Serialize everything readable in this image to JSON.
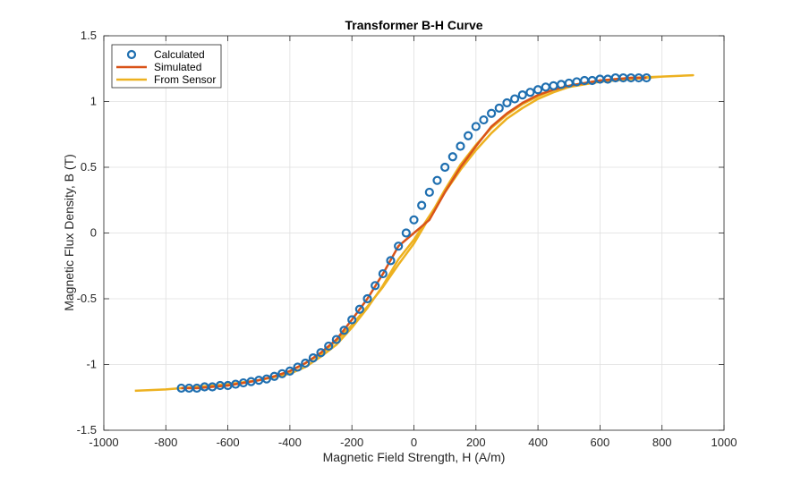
{
  "chart_data": {
    "type": "line",
    "title": "Transformer B-H Curve",
    "xlabel": "Magnetic Field Strength, H (A/m)",
    "ylabel": "Magnetic Flux Density, B (T)",
    "xlim": [
      -1000,
      1000
    ],
    "ylim": [
      -1.5,
      1.5
    ],
    "xticks": [
      -1000,
      -800,
      -600,
      -400,
      -200,
      0,
      200,
      400,
      600,
      800,
      1000
    ],
    "yticks": [
      -1.5,
      -1,
      -0.5,
      0,
      0.5,
      1,
      1.5
    ],
    "xtick_labels": [
      "-1000",
      "-800",
      "-600",
      "-400",
      "-200",
      "0",
      "200",
      "400",
      "600",
      "800",
      "1000"
    ],
    "ytick_labels": [
      "-1.5",
      "-1",
      "-0.5",
      "0",
      "0.5",
      "1",
      "1.5"
    ],
    "grid": true,
    "legend_position": "top-left",
    "series": [
      {
        "name": "Calculated",
        "type": "scatter",
        "color": "#1f6fb0",
        "x": [
          -750,
          -725,
          -700,
          -675,
          -650,
          -625,
          -600,
          -575,
          -550,
          -525,
          -500,
          -475,
          -450,
          -425,
          -400,
          -375,
          -350,
          -325,
          -300,
          -275,
          -250,
          -225,
          -200,
          -175,
          -150,
          -125,
          -100,
          -75,
          -50,
          -25,
          0,
          25,
          50,
          75,
          100,
          125,
          150,
          175,
          200,
          225,
          250,
          275,
          300,
          325,
          350,
          375,
          400,
          425,
          450,
          475,
          500,
          525,
          550,
          575,
          600,
          625,
          650,
          675,
          700,
          725,
          750
        ],
        "y": [
          -1.18,
          -1.18,
          -1.18,
          -1.17,
          -1.17,
          -1.16,
          -1.16,
          -1.15,
          -1.14,
          -1.13,
          -1.12,
          -1.11,
          -1.09,
          -1.07,
          -1.05,
          -1.02,
          -0.99,
          -0.95,
          -0.91,
          -0.86,
          -0.81,
          -0.74,
          -0.66,
          -0.58,
          -0.5,
          -0.4,
          -0.31,
          -0.21,
          -0.1,
          0.0,
          0.1,
          0.21,
          0.31,
          0.4,
          0.5,
          0.58,
          0.66,
          0.74,
          0.81,
          0.86,
          0.91,
          0.95,
          0.99,
          1.02,
          1.05,
          1.07,
          1.09,
          1.11,
          1.12,
          1.13,
          1.14,
          1.15,
          1.16,
          1.16,
          1.17,
          1.17,
          1.18,
          1.18,
          1.18,
          1.18,
          1.18
        ]
      },
      {
        "name": "Simulated",
        "type": "line",
        "color": "#d95319",
        "x": [
          -750,
          -700,
          -650,
          -600,
          -550,
          -500,
          -450,
          -400,
          -350,
          -300,
          -250,
          -200,
          -150,
          -100,
          -50,
          0,
          50,
          100,
          150,
          200,
          250,
          300,
          350,
          400,
          450,
          500,
          550,
          600,
          650,
          700,
          750
        ],
        "y": [
          -1.18,
          -1.18,
          -1.17,
          -1.16,
          -1.14,
          -1.12,
          -1.09,
          -1.05,
          -0.99,
          -0.91,
          -0.81,
          -0.66,
          -0.5,
          -0.31,
          -0.1,
          0.0,
          0.1,
          0.31,
          0.5,
          0.66,
          0.81,
          0.91,
          0.99,
          1.05,
          1.09,
          1.12,
          1.14,
          1.16,
          1.17,
          1.18,
          1.18
        ]
      },
      {
        "name": "From Sensor",
        "type": "line",
        "color": "#edb120",
        "x": [
          -900,
          -800,
          -700,
          -600,
          -500,
          -400,
          -350,
          -300,
          -250,
          -200,
          -150,
          -100,
          -50,
          0,
          50,
          100,
          150,
          200,
          250,
          300,
          350,
          400,
          450,
          500,
          600,
          700,
          800,
          900,
          800,
          700,
          600,
          500,
          450,
          400,
          350,
          300,
          250,
          200,
          150,
          100,
          50,
          0,
          -50,
          -100,
          -150,
          -200,
          -250,
          -300,
          -350,
          -400,
          -450,
          -500,
          -600,
          -700,
          -800,
          -900
        ],
        "y": [
          -1.2,
          -1.19,
          -1.17,
          -1.15,
          -1.12,
          -1.07,
          -1.02,
          -0.94,
          -0.85,
          -0.72,
          -0.57,
          -0.4,
          -0.2,
          -0.05,
          0.13,
          0.31,
          0.48,
          0.63,
          0.76,
          0.87,
          0.95,
          1.02,
          1.07,
          1.11,
          1.15,
          1.17,
          1.19,
          1.2,
          1.19,
          1.18,
          1.16,
          1.12,
          1.09,
          1.04,
          0.98,
          0.9,
          0.8,
          0.67,
          0.52,
          0.33,
          0.12,
          -0.08,
          -0.24,
          -0.41,
          -0.56,
          -0.7,
          -0.82,
          -0.92,
          -0.99,
          -1.05,
          -1.09,
          -1.12,
          -1.15,
          -1.17,
          -1.19,
          -1.2
        ]
      }
    ]
  }
}
